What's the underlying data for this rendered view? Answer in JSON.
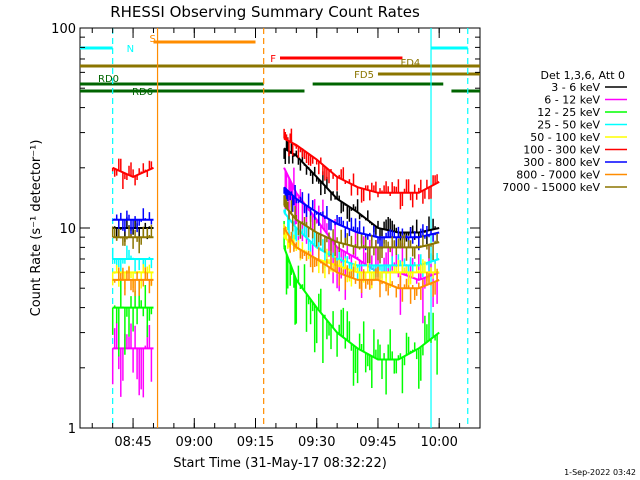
{
  "chart_data": {
    "type": "line",
    "title": "RHESSI Observing Summary Count Rates",
    "xlabel": "Start Time (31-May-17 08:32:22)",
    "ylabel": "Count Rate (s⁻¹ detector⁻¹)",
    "yscale": "log",
    "ylim": [
      1,
      100
    ],
    "xlim": [
      "08:32",
      "10:10"
    ],
    "y_tick_labels": [
      "1",
      "10",
      "100"
    ],
    "x_tick_labels": [
      "08:45",
      "09:00",
      "09:15",
      "09:30",
      "09:45",
      "10:00"
    ],
    "legend_title": "Det 1,3,6, Att 0",
    "legend_position": "right",
    "grid": false,
    "footer": "1-Sep-2022 03:42",
    "series": [
      {
        "name": "3 - 6 keV",
        "color": "#000000",
        "x": [
          "08:40",
          "08:45",
          "08:50",
          "09:22",
          "09:25",
          "09:30",
          "09:35",
          "09:40",
          "09:45",
          "09:50",
          "09:55",
          "10:00"
        ],
        "y": [
          10,
          10,
          10,
          25,
          23,
          18,
          14,
          12,
          10,
          9.5,
          9.5,
          10
        ]
      },
      {
        "name": "6 - 12 keV",
        "color": "#ff00ff",
        "x": [
          "08:40",
          "08:45",
          "08:50",
          "09:22",
          "09:25",
          "09:30",
          "09:35",
          "09:40",
          "09:45",
          "09:50",
          "09:55",
          "10:00"
        ],
        "y": [
          2.5,
          2.5,
          2.5,
          20,
          15,
          11,
          8,
          7,
          6,
          6,
          5.5,
          6
        ]
      },
      {
        "name": "12 - 25 keV",
        "color": "#00ff00",
        "x": [
          "08:40",
          "08:45",
          "08:50",
          "09:22",
          "09:25",
          "09:30",
          "09:35",
          "09:40",
          "09:45",
          "09:50",
          "09:55",
          "10:00"
        ],
        "y": [
          4,
          4,
          4,
          8,
          5.5,
          4,
          3,
          2.5,
          2.2,
          2.2,
          2.5,
          3
        ]
      },
      {
        "name": "25 - 50 keV",
        "color": "#00ffff",
        "x": [
          "08:40",
          "08:45",
          "08:50",
          "09:22",
          "09:25",
          "09:30",
          "09:35",
          "09:40",
          "09:45",
          "09:50",
          "09:55",
          "10:00"
        ],
        "y": [
          7,
          7,
          7,
          12,
          10,
          8,
          7,
          6.5,
          6.5,
          6.5,
          6.5,
          7
        ]
      },
      {
        "name": "50 - 100 keV",
        "color": "#ffff00",
        "x": [
          "08:40",
          "08:45",
          "08:50",
          "09:22",
          "09:25",
          "09:30",
          "09:35",
          "09:40",
          "09:45",
          "09:50",
          "09:55",
          "10:00"
        ],
        "y": [
          6,
          6,
          6,
          9,
          8,
          7,
          6.5,
          6,
          6,
          6,
          6,
          6
        ]
      },
      {
        "name": "100 - 300 keV",
        "color": "#ff0000",
        "x": [
          "08:40",
          "08:45",
          "08:50",
          "09:22",
          "09:25",
          "09:30",
          "09:35",
          "09:40",
          "09:45",
          "09:50",
          "09:55",
          "10:00"
        ],
        "y": [
          20,
          18,
          20,
          28,
          26,
          22,
          18,
          16,
          15,
          15,
          15,
          17
        ]
      },
      {
        "name": "300 - 800 keV",
        "color": "#0000ff",
        "x": [
          "08:40",
          "08:45",
          "08:50",
          "09:22",
          "09:25",
          "09:30",
          "09:35",
          "09:40",
          "09:45",
          "09:50",
          "09:55",
          "10:00"
        ],
        "y": [
          11,
          11,
          11,
          16,
          14,
          12,
          10.5,
          9.5,
          9,
          9,
          9,
          9.5
        ]
      },
      {
        "name": "800 - 7000 keV",
        "color": "#ff8c00",
        "x": [
          "08:40",
          "08:45",
          "08:50",
          "09:22",
          "09:25",
          "09:30",
          "09:35",
          "09:40",
          "09:45",
          "09:50",
          "09:55",
          "10:00"
        ],
        "y": [
          5.5,
          5.5,
          5.5,
          10,
          8,
          7,
          6,
          5.5,
          5.5,
          5,
          5,
          5.5
        ]
      },
      {
        "name": "7000 - 15000 keV",
        "color": "#8b7500",
        "x": [
          "08:40",
          "08:45",
          "08:50",
          "09:22",
          "09:25",
          "09:30",
          "09:35",
          "09:40",
          "09:45",
          "09:50",
          "09:55",
          "10:00"
        ],
        "y": [
          9,
          9,
          9,
          13,
          11,
          9.5,
          8.5,
          8,
          8,
          8,
          8,
          8.5
        ]
      }
    ],
    "flag_bars": [
      {
        "label": "N",
        "color": "#00ffff",
        "segments": [
          [
            "08:32",
            "08:40"
          ],
          [
            "09:58",
            "10:07"
          ]
        ]
      },
      {
        "label": "S",
        "color": "#ff8c00",
        "segments": [
          [
            "08:50",
            "09:15"
          ]
        ]
      },
      {
        "label": "F",
        "color": "#ff0000",
        "segments": [
          [
            "09:21",
            "09:51"
          ]
        ]
      },
      {
        "label": "FD4",
        "color": "#8b7500",
        "segments": [
          [
            "08:32",
            "10:10"
          ]
        ]
      },
      {
        "label": "FD5",
        "color": "#8b7500",
        "segments": [
          [
            "09:45",
            "10:10"
          ]
        ]
      },
      {
        "label": "RD0",
        "color": "#006400",
        "segments": [
          [
            "08:32",
            "09:17"
          ],
          [
            "09:29",
            "10:01"
          ]
        ]
      },
      {
        "label": "RD6",
        "color": "#006400",
        "segments": [
          [
            "08:32",
            "09:17"
          ],
          [
            "09:17",
            "09:27"
          ],
          [
            "10:03",
            "10:10"
          ]
        ]
      }
    ],
    "vlines": [
      {
        "time": "08:40",
        "color": "#00ffff",
        "dash": true
      },
      {
        "time": "08:51",
        "color": "#ff8c00",
        "dash": false
      },
      {
        "time": "09:17",
        "color": "#ff8c00",
        "dash": true
      },
      {
        "time": "09:58",
        "color": "#00ffff",
        "dash": false
      },
      {
        "time": "10:07",
        "color": "#00ffff",
        "dash": true
      }
    ]
  }
}
